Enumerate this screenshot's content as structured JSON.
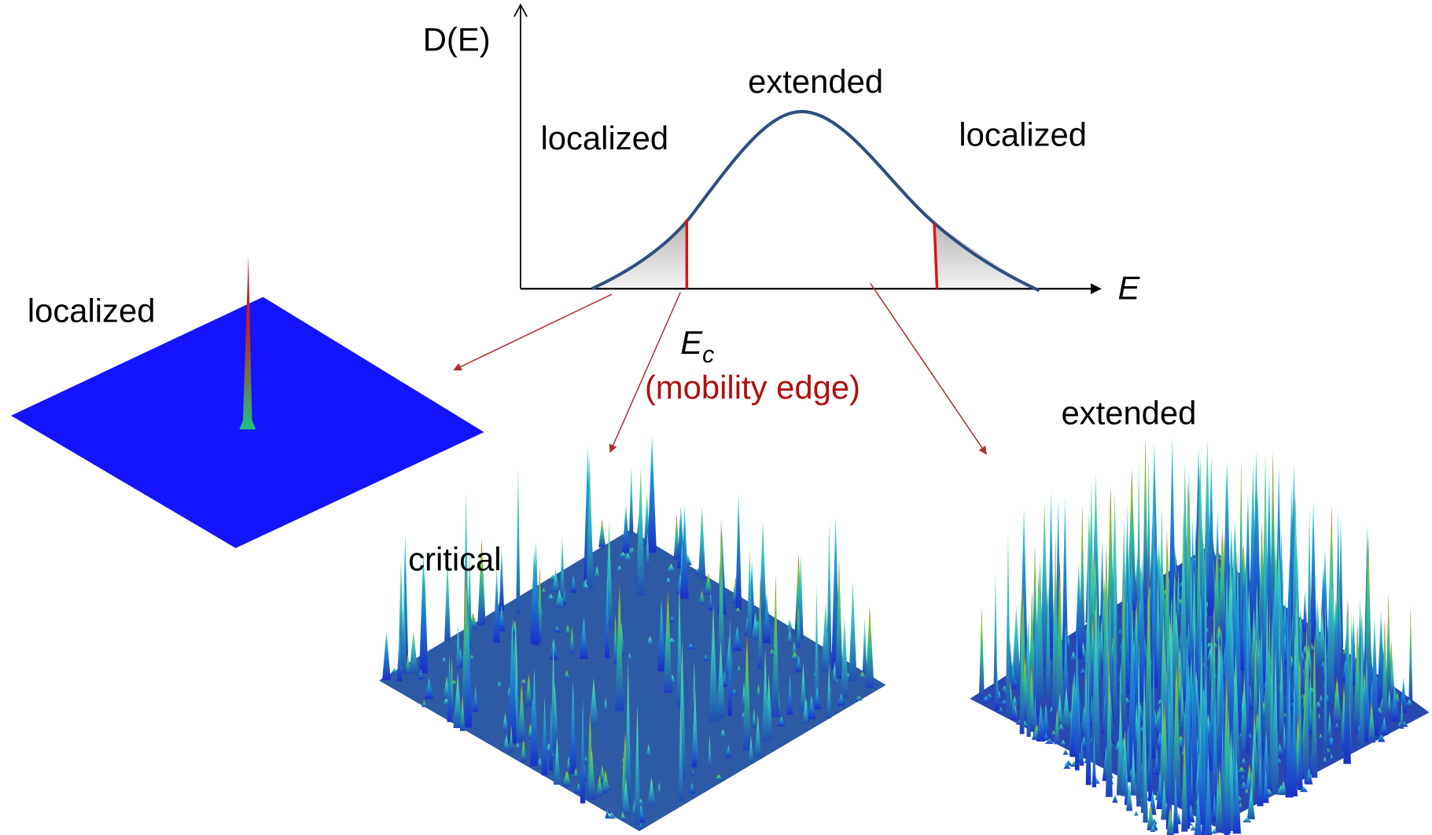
{
  "axes": {
    "y_label": "D(E)",
    "x_label": "E"
  },
  "regions": {
    "left": "localized",
    "center": "extended",
    "right": "localized"
  },
  "mobility_edge": {
    "symbol": "E",
    "subscript": "c",
    "caption": "(mobility edge)"
  },
  "panels": [
    {
      "label": "localized"
    },
    {
      "label": "critical"
    },
    {
      "label": "extended"
    }
  ]
}
